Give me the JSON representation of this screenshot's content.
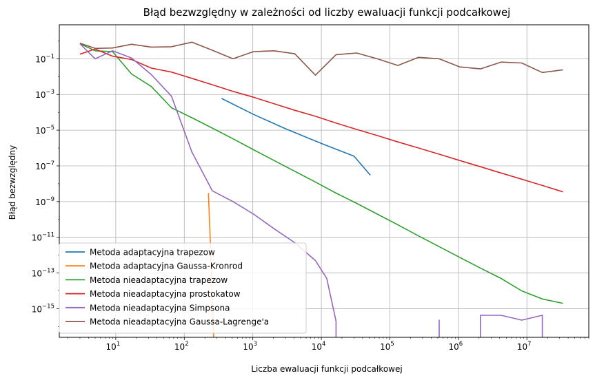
{
  "chart_data": {
    "type": "line",
    "title": "Błąd bezwzględny w zależności od liczby ewaluacji funkcji podcałkowej",
    "xlabel": "Liczba ewaluacji funkcji podcałkowej",
    "ylabel": "Błąd bezwzględny",
    "xscale": "log",
    "yscale": "log",
    "xlim": [
      1.5,
      80000000
    ],
    "ylim": [
      2.5e-17,
      8
    ],
    "grid": true,
    "legend_position": "lower-left",
    "x_ticks": [
      {
        "base": "10",
        "exp": "1",
        "value": 10
      },
      {
        "base": "10",
        "exp": "2",
        "value": 100
      },
      {
        "base": "10",
        "exp": "3",
        "value": 1000
      },
      {
        "base": "10",
        "exp": "4",
        "value": 10000
      },
      {
        "base": "10",
        "exp": "5",
        "value": 100000
      },
      {
        "base": "10",
        "exp": "6",
        "value": 1000000
      },
      {
        "base": "10",
        "exp": "7",
        "value": 10000000
      }
    ],
    "y_ticks": [
      {
        "base": "10",
        "exp": "−1",
        "value": 0.1
      },
      {
        "base": "10",
        "exp": "−3",
        "value": 0.001
      },
      {
        "base": "10",
        "exp": "−5",
        "value": 1e-05
      },
      {
        "base": "10",
        "exp": "−7",
        "value": 1e-07
      },
      {
        "base": "10",
        "exp": "−9",
        "value": 1e-09
      },
      {
        "base": "10",
        "exp": "−11",
        "value": 1e-11
      },
      {
        "base": "10",
        "exp": "−13",
        "value": 1e-13
      },
      {
        "base": "10",
        "exp": "−15",
        "value": 1e-15
      }
    ],
    "series": [
      {
        "name": "Metoda adaptacyjna trapezow",
        "color": "#1f77b4",
        "points": [
          [
            350,
            0.0006
          ],
          [
            1000,
            8e-05
          ],
          [
            3000,
            1.2e-05
          ],
          [
            10000,
            1.8e-06
          ],
          [
            30000,
            3.5e-07
          ],
          [
            52000,
            3e-08
          ]
        ]
      },
      {
        "name": "Metoda adaptacyjna Gaussa-Kronrod",
        "color": "#ff7f0e",
        "points": [
          [
            225,
            3e-09
          ],
          [
            250,
            1e-13
          ],
          [
            270,
            1e-17
          ]
        ]
      },
      {
        "name": "Metoda nieadaptacyjna trapezow",
        "color": "#2ca02c",
        "points": [
          [
            3,
            0.7
          ],
          [
            5,
            0.28
          ],
          [
            9,
            0.25
          ],
          [
            17,
            0.014
          ],
          [
            33,
            0.0028
          ],
          [
            65,
            0.00018
          ],
          [
            129,
            5e-05
          ],
          [
            257,
            1.3e-05
          ],
          [
            513,
            3.3e-06
          ],
          [
            1025,
            8e-07
          ],
          [
            2049,
            2e-07
          ],
          [
            4097,
            5e-08
          ],
          [
            8193,
            1.25e-08
          ],
          [
            16385,
            3e-09
          ],
          [
            32769,
            8e-10
          ],
          [
            65537,
            2e-10
          ],
          [
            131073,
            5e-11
          ],
          [
            262145,
            1.2e-11
          ],
          [
            524289,
            3e-12
          ],
          [
            1048577,
            7.5e-13
          ],
          [
            2097153,
            1.9e-13
          ],
          [
            4194305,
            5e-14
          ],
          [
            8388609,
            1e-14
          ],
          [
            16777217,
            3.5e-15
          ],
          [
            33554433,
            2e-15
          ]
        ]
      },
      {
        "name": "Metoda nieadaptacyjna prostokatow",
        "color": "#d62728",
        "points": [
          [
            3,
            0.18
          ],
          [
            5,
            0.35
          ],
          [
            9,
            0.14
          ],
          [
            17,
            0.09
          ],
          [
            33,
            0.03
          ],
          [
            65,
            0.018
          ],
          [
            129,
            0.008
          ],
          [
            257,
            0.0035
          ],
          [
            513,
            0.0015
          ],
          [
            1025,
            0.0007
          ],
          [
            2049,
            0.0003
          ],
          [
            4097,
            0.00013
          ],
          [
            8193,
            6e-05
          ],
          [
            16385,
            2.5e-05
          ],
          [
            32769,
            1.1e-05
          ],
          [
            65537,
            5e-06
          ],
          [
            131073,
            2.2e-06
          ],
          [
            262145,
            1e-06
          ],
          [
            524289,
            4.5e-07
          ],
          [
            1048577,
            2e-07
          ],
          [
            2097153,
            9e-08
          ],
          [
            4194305,
            4e-08
          ],
          [
            8388609,
            1.8e-08
          ],
          [
            16777217,
            8e-09
          ],
          [
            33554433,
            3.5e-09
          ]
        ]
      },
      {
        "name": "Metoda nieadaptacyjna Simpsona",
        "color": "#9467bd",
        "points": [
          [
            3,
            0.7
          ],
          [
            5,
            0.1
          ],
          [
            9,
            0.28
          ],
          [
            17,
            0.11
          ],
          [
            33,
            0.013
          ],
          [
            65,
            0.0008
          ],
          [
            129,
            6e-07
          ],
          [
            257,
            4e-09
          ],
          [
            513,
            1e-09
          ],
          [
            1025,
            2e-10
          ],
          [
            2049,
            3e-11
          ],
          [
            4097,
            5e-12
          ],
          [
            8193,
            5e-13
          ],
          [
            12000,
            5e-14
          ],
          [
            16385,
            2e-16
          ],
          [
            16385,
            1e-17
          ],
          [
            524289,
            1e-17
          ],
          [
            524289,
            2.3e-16
          ],
          [
            524289,
            1e-17
          ],
          [
            2097153,
            1e-17
          ],
          [
            2097153,
            4.3e-16
          ],
          [
            4194305,
            4.3e-16
          ],
          [
            8388609,
            2.3e-16
          ],
          [
            16777217,
            4.3e-16
          ],
          [
            16777217,
            1e-17
          ]
        ]
      },
      {
        "name": "Metoda nieadaptacyjna Gaussa-Lagrenge'a",
        "color": "#8c564b",
        "points": [
          [
            3,
            0.75
          ],
          [
            5,
            0.38
          ],
          [
            9,
            0.4
          ],
          [
            17,
            0.65
          ],
          [
            33,
            0.45
          ],
          [
            65,
            0.47
          ],
          [
            129,
            0.85
          ],
          [
            257,
            0.3
          ],
          [
            513,
            0.1
          ],
          [
            1025,
            0.25
          ],
          [
            2049,
            0.28
          ],
          [
            4097,
            0.19
          ],
          [
            8193,
            0.012
          ],
          [
            16385,
            0.17
          ],
          [
            32769,
            0.21
          ],
          [
            65537,
            0.1
          ],
          [
            131073,
            0.042
          ],
          [
            262145,
            0.12
          ],
          [
            524289,
            0.1
          ],
          [
            1048577,
            0.035
          ],
          [
            2097153,
            0.027
          ],
          [
            4194305,
            0.065
          ],
          [
            8388609,
            0.058
          ],
          [
            16777217,
            0.017
          ],
          [
            33554433,
            0.024
          ]
        ]
      }
    ]
  }
}
